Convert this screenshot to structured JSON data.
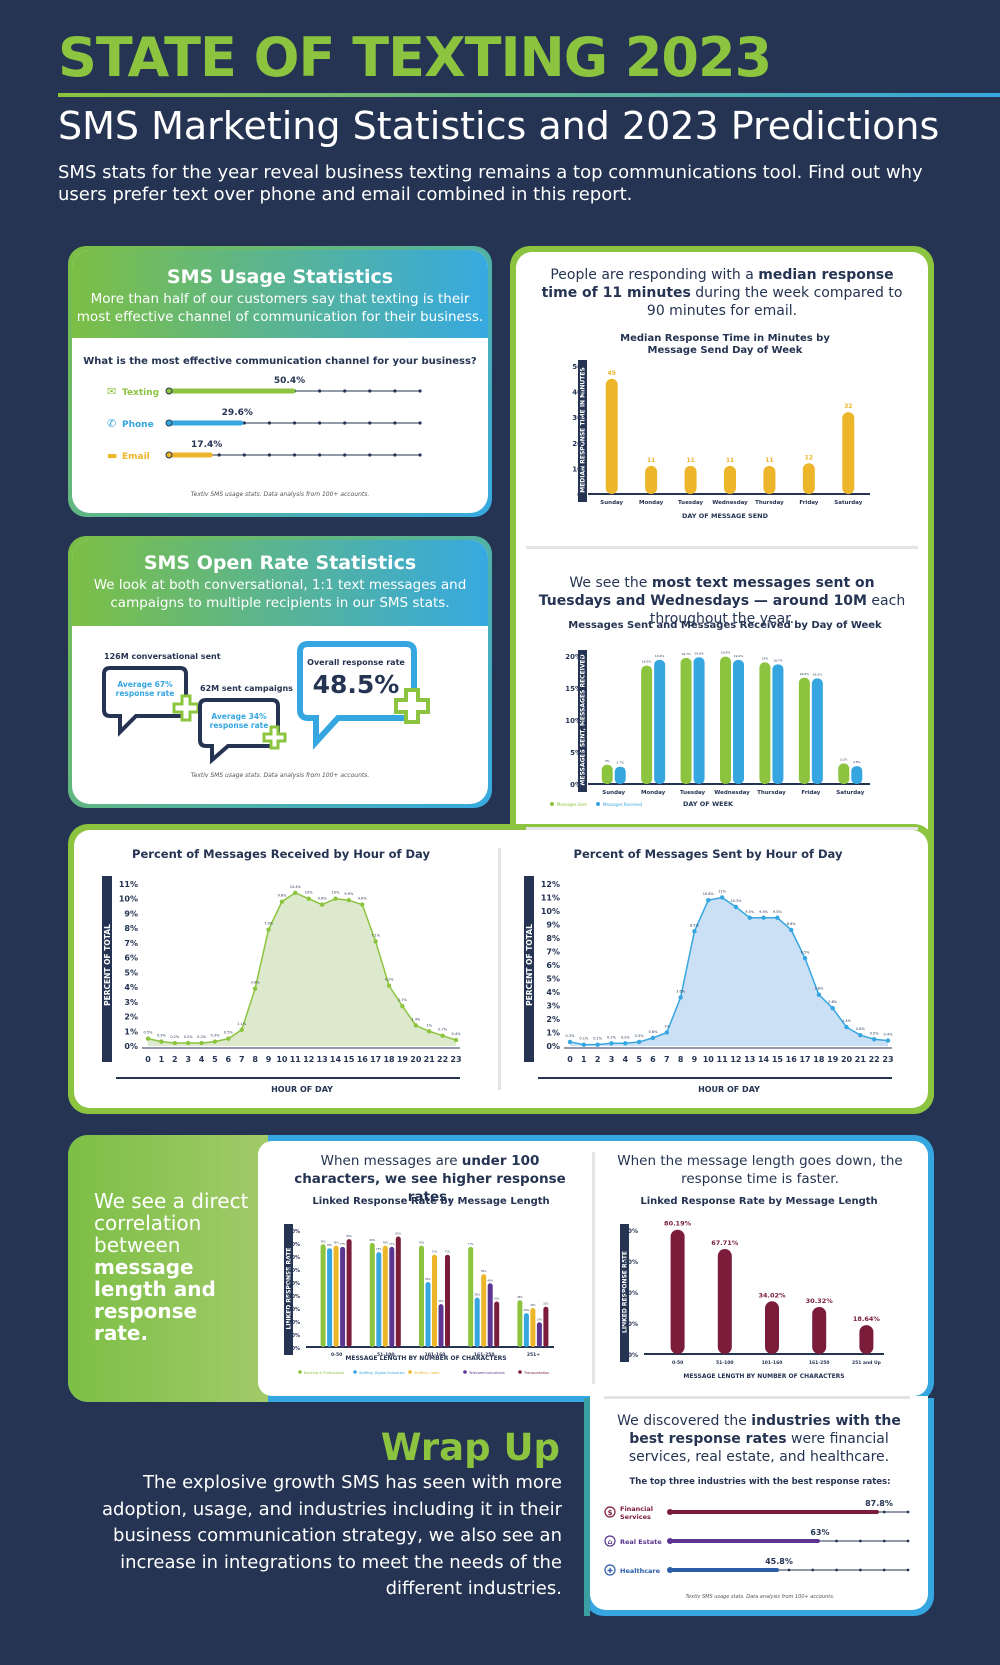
{
  "header": {
    "title": "STATE OF TEXTING 2023",
    "subtitle": "SMS Marketing Statistics and 2023 Predictions",
    "intro": "SMS stats for the year reveal business texting remains a top communications tool. Find out why users prefer text over phone and email combined in this report."
  },
  "usage": {
    "title": "SMS Usage Statistics",
    "desc": "More than half of our customers say that texting is their most effective channel of communication for their business.",
    "question": "What is the most effective communication channel for your business?",
    "footnote": "Textiv SMS usage stats. Data analysis from 100+ accounts."
  },
  "open": {
    "title": "SMS Open Rate Statistics",
    "desc": "We look at both conversational, 1:1 text messages and campaigns to multiple recipients in our SMS stats.",
    "conv_label": "126M conversational sent",
    "conv_rate": "Average 67% response rate",
    "camp_label": "62M sent campaigns",
    "camp_rate": "Average 34% response rate",
    "overall_label": "Overall response rate",
    "overall_value": "48.5%",
    "footnote": "Textiv SMS usage stats. Data analysis from 100+ accounts."
  },
  "response": {
    "intro_a": "People are responding with a ",
    "intro_b": "median response time of 11 minutes",
    "intro_c": " during the week compared to 90 minutes for email."
  },
  "sent": {
    "intro_a": "We see the ",
    "intro_b": "most text messages sent on Tuesdays and Wednesdays — around 10M",
    "intro_c": " each throughout the year."
  },
  "length": {
    "side_a": "We see a direct correlation between ",
    "side_b": "message length and response rate.",
    "left_a": "When messages are ",
    "left_b": "under 100 characters, we see higher response rates.",
    "right": "When the message length goes down, the response time is faster."
  },
  "industry": {
    "intro_a": "We discovered the ",
    "intro_b": "industries with the best response rates",
    "intro_c": " were financial services, real estate, and healthcare.",
    "footnote": "Textiv SMS usage stats. Data analysis from 100+ accounts."
  },
  "wrap": {
    "title": "Wrap Up",
    "text": "The explosive growth SMS has seen with more adoption, usage, and industries including it in their business communication strategy, we also see an increase in integrations to meet the needs of the different industries."
  },
  "colors": {
    "green": "#8cc43f",
    "blue": "#35a6e0",
    "navy": "#253452",
    "yellow": "#edb52a",
    "maroon": "#7a1c3a",
    "purple": "#5b3591"
  },
  "chart_data": [
    {
      "id": "channel",
      "type": "bar",
      "title": "What is the most effective communication channel for your business?",
      "categories": [
        "Texting",
        "Phone",
        "Email"
      ],
      "values": [
        50.4,
        29.6,
        17.4
      ],
      "value_labels": [
        "50.4%",
        "29.6%",
        "17.4%"
      ],
      "colors": [
        "#8cc43f",
        "#35a6e0",
        "#edb52a"
      ],
      "icons": [
        "chat-icon",
        "phone-icon",
        "email-icon"
      ],
      "xlim": [
        0,
        100
      ]
    },
    {
      "id": "response_time",
      "type": "bar",
      "title": "Median Response Time in Minutes by Message Send Day of Week",
      "categories": [
        "Sunday",
        "Monday",
        "Tuesday",
        "Wednesday",
        "Thursday",
        "Friday",
        "Saturday"
      ],
      "values": [
        45,
        11,
        11,
        11,
        11,
        12,
        32
      ],
      "xlabel": "DAY OF MESSAGE SEND",
      "ylabel": "MEDIAN RESPONSE TIME IN MINUTES",
      "ylim": [
        0,
        50
      ],
      "yticks": [
        "0",
        "10",
        "20",
        "30",
        "40",
        "50"
      ],
      "color": "#edb52a"
    },
    {
      "id": "sent_received",
      "type": "bar",
      "title": "Messages Sent and Messages Received by Day of Week",
      "categories": [
        "Sunday",
        "Monday",
        "Tuesday",
        "Wednesday",
        "Thursday",
        "Friday",
        "Saturday"
      ],
      "series": [
        {
          "name": "Messages Sent",
          "values": [
            3.0,
            18.5,
            19.7,
            19.9,
            19.0,
            16.6,
            3.2
          ],
          "color": "#8cc43f"
        },
        {
          "name": "Messages Received",
          "values": [
            2.7,
            19.4,
            19.8,
            19.4,
            18.7,
            16.5,
            2.8
          ],
          "color": "#35a6e0"
        }
      ],
      "xlabel": "DAY OF WEEK",
      "ylabel": "MESSAGES SENT, MESSAGES RECEIVED",
      "ylim": [
        0,
        20
      ],
      "yticks": [
        "0%",
        "5%",
        "10%",
        "15%",
        "20%"
      ]
    },
    {
      "id": "received_hour",
      "type": "area",
      "title": "Percent of Messages Received by Hour of Day",
      "x": [
        0,
        1,
        2,
        3,
        4,
        5,
        6,
        7,
        8,
        9,
        10,
        11,
        12,
        13,
        14,
        15,
        16,
        17,
        18,
        19,
        20,
        21,
        22,
        23
      ],
      "values": [
        0.5,
        0.3,
        0.2,
        0.2,
        0.2,
        0.3,
        0.5,
        1.1,
        3.9,
        7.9,
        9.8,
        10.4,
        10.0,
        9.6,
        10.0,
        9.9,
        9.6,
        7.1,
        4.1,
        2.7,
        1.4,
        1.0,
        0.7,
        0.4
      ],
      "xlabel": "HOUR OF DAY",
      "ylabel": "PERCENT OF TOTAL",
      "ylim": [
        0,
        11
      ],
      "yticks": [
        "0%",
        "1%",
        "2%",
        "3%",
        "4%",
        "5%",
        "6%",
        "7%",
        "8%",
        "9%",
        "10%",
        "11%"
      ],
      "color": "#8cc43f",
      "fill": "#dde9cd"
    },
    {
      "id": "sent_hour",
      "type": "area",
      "title": "Percent of Messages Sent by Hour of Day",
      "x": [
        0,
        1,
        2,
        3,
        4,
        5,
        6,
        7,
        8,
        9,
        10,
        11,
        12,
        13,
        14,
        15,
        16,
        17,
        18,
        19,
        20,
        21,
        22,
        23
      ],
      "values": [
        0.3,
        0.1,
        0.1,
        0.2,
        0.2,
        0.3,
        0.6,
        1.0,
        3.6,
        8.5,
        10.8,
        11.0,
        10.3,
        9.5,
        9.5,
        9.5,
        8.6,
        6.5,
        3.8,
        2.8,
        1.4,
        0.8,
        0.5,
        0.4
      ],
      "xlabel": "HOUR OF DAY",
      "ylabel": "PERCENT OF TOTAL",
      "ylim": [
        0,
        12
      ],
      "yticks": [
        "0%",
        "1%",
        "2%",
        "3%",
        "4%",
        "5%",
        "6%",
        "7%",
        "8%",
        "9%",
        "10%",
        "11%",
        "12%"
      ],
      "color": "#35a6e0",
      "fill": "#cce0f5"
    },
    {
      "id": "length_industry",
      "type": "bar",
      "title": "Linked Response Rate by Message Length",
      "categories": [
        "0-50",
        "51-100",
        "101-160",
        "161-250",
        "251+"
      ],
      "series": [
        {
          "name": "Banking & Professional",
          "values": [
            79,
            80,
            78,
            77,
            36
          ],
          "color": "#8cc43f"
        },
        {
          "name": "Staffing, Digital Industries",
          "values": [
            76,
            73,
            50,
            38,
            26
          ],
          "color": "#35a6e0"
        },
        {
          "name": "Staffing, Labor",
          "values": [
            78,
            78,
            71,
            56,
            30
          ],
          "color": "#edb52a"
        },
        {
          "name": "Telecommunications",
          "values": [
            77,
            77,
            33,
            49,
            19
          ],
          "color": "#5b3591"
        },
        {
          "name": "Transportation",
          "values": [
            83,
            85,
            71,
            35,
            31
          ],
          "color": "#7a1c3a"
        }
      ],
      "xlabel": "MESSAGE LENGTH BY NUMBER OF CHARACTERS",
      "ylabel": "LINKED RESPONSE RATE",
      "ylim": [
        0,
        90
      ],
      "yticks": [
        "0%",
        "10%",
        "20%",
        "30%",
        "40%",
        "50%",
        "60%",
        "70%",
        "80%",
        "90%"
      ]
    },
    {
      "id": "length_overall",
      "type": "bar",
      "title": "Linked Response Rate by Message Length",
      "categories": [
        "0-50",
        "51-100",
        "101-160",
        "161-250",
        "251 and Up"
      ],
      "values": [
        80.19,
        67.71,
        34.02,
        30.32,
        18.64
      ],
      "value_labels": [
        "80.19%",
        "67.71%",
        "34.02%",
        "30.32%",
        "18.64%"
      ],
      "xlabel": "MESSAGE LENGTH BY NUMBER OF CHARACTERS",
      "ylabel": "LINKED RESPONSE RATE",
      "ylim": [
        0,
        80
      ],
      "yticks": [
        "0%",
        "20%",
        "40%",
        "60%",
        "80%"
      ],
      "color": "#7a1c3a"
    },
    {
      "id": "industries",
      "type": "bar",
      "title": "The top three industries with the best response rates:",
      "categories": [
        "Financial Services",
        "Real Estate",
        "Healthcare"
      ],
      "values": [
        87.8,
        63,
        45.8
      ],
      "value_labels": [
        "87.8%",
        "63%",
        "45.8%"
      ],
      "colors": [
        "#7a1c3a",
        "#5b3591",
        "#2b5ea7"
      ],
      "icons": [
        "dollar-icon",
        "house-icon",
        "hospital-icon"
      ],
      "xlim": [
        0,
        100
      ]
    }
  ]
}
